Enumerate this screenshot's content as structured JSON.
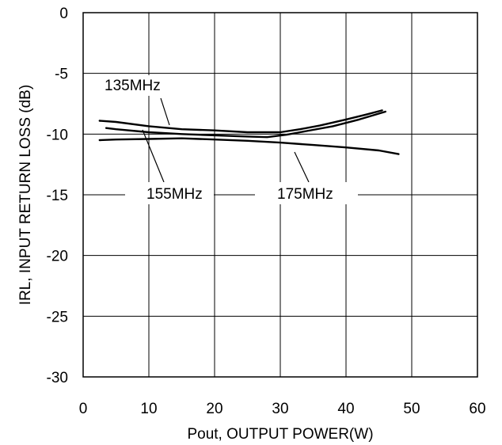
{
  "chart_data": {
    "type": "line",
    "xlabel": "Pout, OUTPUT POWER(W)",
    "ylabel": "IRL, INPUT RETURN LOSS (dB)",
    "xlim": [
      0,
      60
    ],
    "ylim": [
      -30,
      0
    ],
    "xticks": [
      "0",
      "10",
      "20",
      "30",
      "40",
      "50",
      "60"
    ],
    "yticks": [
      "0",
      "-5",
      "-10",
      "-15",
      "-20",
      "-25",
      "-30"
    ],
    "grid": true,
    "series": [
      {
        "name": "135MHz",
        "x": [
          2.5,
          5,
          10,
          15,
          20,
          25,
          30,
          33,
          36,
          40,
          43,
          45.5
        ],
        "y": [
          -8.9,
          -9.0,
          -9.35,
          -9.6,
          -9.7,
          -9.85,
          -9.85,
          -9.6,
          -9.3,
          -8.8,
          -8.4,
          -8.05
        ]
      },
      {
        "name": "155MHz",
        "x": [
          3.5,
          5,
          10,
          15,
          20,
          25,
          28,
          31,
          34,
          38,
          42,
          46
        ],
        "y": [
          -9.5,
          -9.6,
          -9.85,
          -10.0,
          -10.1,
          -10.2,
          -10.25,
          -10.05,
          -9.75,
          -9.35,
          -8.8,
          -8.15
        ]
      },
      {
        "name": "175MHz",
        "x": [
          2.5,
          5,
          10,
          15,
          20,
          25,
          30,
          35,
          40,
          45,
          48
        ],
        "y": [
          -10.5,
          -10.45,
          -10.4,
          -10.35,
          -10.45,
          -10.55,
          -10.7,
          -10.9,
          -11.1,
          -11.35,
          -11.65
        ]
      }
    ],
    "annotations": [
      {
        "text": "135MHz",
        "series": "135MHz"
      },
      {
        "text": "155MHz",
        "series": "155MHz"
      },
      {
        "text": "175MHz",
        "series": "175MHz"
      }
    ]
  }
}
